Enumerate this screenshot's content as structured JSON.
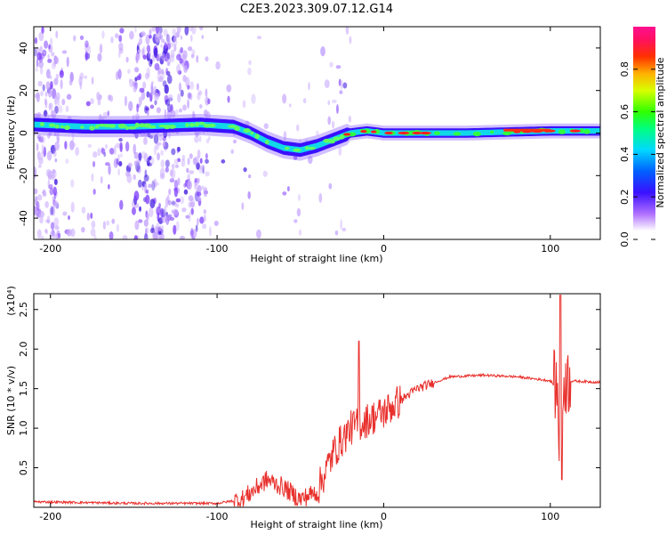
{
  "title": "C2E3.2023.309.07.12.G14",
  "chart_data": [
    {
      "type": "heatmap",
      "xlabel": "Height of straight line (km)",
      "ylabel": "Frequency (Hz)",
      "xlim": [
        -210,
        130
      ],
      "ylim": [
        -50,
        50
      ],
      "xticks": [
        -200,
        -100,
        0,
        100
      ],
      "yticks": [
        -40,
        -20,
        0,
        20,
        40
      ],
      "colorbar": {
        "label": "Normalized spectral amplitude",
        "range": [
          0,
          1
        ],
        "ticks": [
          "0.0",
          "0.2",
          "0.4",
          "0.6",
          "0.8"
        ]
      },
      "ridge_frequency": [
        {
          "x": -210,
          "y": 4
        },
        {
          "x": -180,
          "y": 3
        },
        {
          "x": -150,
          "y": 3
        },
        {
          "x": -110,
          "y": 4
        },
        {
          "x": -90,
          "y": 3
        },
        {
          "x": -80,
          "y": 0
        },
        {
          "x": -70,
          "y": -4
        },
        {
          "x": -60,
          "y": -7
        },
        {
          "x": -50,
          "y": -8
        },
        {
          "x": -40,
          "y": -6
        },
        {
          "x": -30,
          "y": -3
        },
        {
          "x": -20,
          "y": 0
        },
        {
          "x": -10,
          "y": 1
        },
        {
          "x": 0,
          "y": 0
        },
        {
          "x": 50,
          "y": 0
        },
        {
          "x": 100,
          "y": 1
        },
        {
          "x": 130,
          "y": 1
        }
      ]
    },
    {
      "type": "line",
      "xlabel": "Height of straight line (km)",
      "ylabel": "SNR (10 * v/v)",
      "y_multiplier": "(x10⁴)",
      "xlim": [
        -210,
        130
      ],
      "ylim": [
        0,
        2.7
      ],
      "xticks": [
        -200,
        -100,
        0,
        100
      ],
      "yticks": [
        "0.5",
        "1.0",
        "1.5",
        "2.0",
        "2.5"
      ],
      "color": "#e8302c",
      "series": [
        {
          "x": [
            -210,
            -150,
            -100,
            -85,
            -70,
            -60,
            -50,
            -40,
            -30,
            -20,
            -10,
            0,
            10,
            20,
            40,
            60,
            80,
            100,
            104,
            106,
            108,
            110,
            130
          ],
          "y": [
            0.07,
            0.05,
            0.05,
            0.1,
            0.35,
            0.25,
            0.1,
            0.2,
            0.7,
            1.0,
            1.1,
            1.2,
            1.35,
            1.5,
            1.65,
            1.67,
            1.65,
            1.6,
            1.5,
            0.5,
            1.6,
            1.6,
            1.58
          ]
        }
      ]
    }
  ]
}
